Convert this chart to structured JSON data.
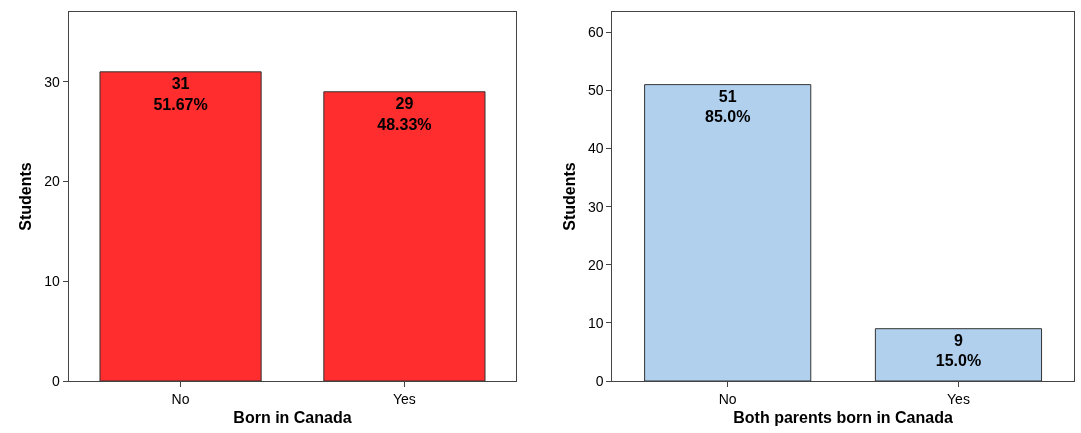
{
  "chart_data": [
    {
      "type": "bar",
      "xlabel": "Born in Canada",
      "ylabel": "Students",
      "categories": [
        "No",
        "Yes"
      ],
      "values": [
        31,
        29
      ],
      "value_labels": [
        "31\n51.67%",
        "29\n48.33%"
      ],
      "color": "#ff2d2d",
      "ylim": [
        0,
        37
      ],
      "yticks": [
        0,
        10,
        20,
        30
      ]
    },
    {
      "type": "bar",
      "xlabel": "Both parents born in Canada",
      "ylabel": "Students",
      "categories": [
        "No",
        "Yes"
      ],
      "values": [
        51,
        9
      ],
      "value_labels": [
        "51\n85.0%",
        "9\n15.0%"
      ],
      "color": "#b0d0ee",
      "ylim": [
        0,
        63.5
      ],
      "yticks": [
        0,
        10,
        20,
        30,
        40,
        50,
        60
      ]
    }
  ]
}
